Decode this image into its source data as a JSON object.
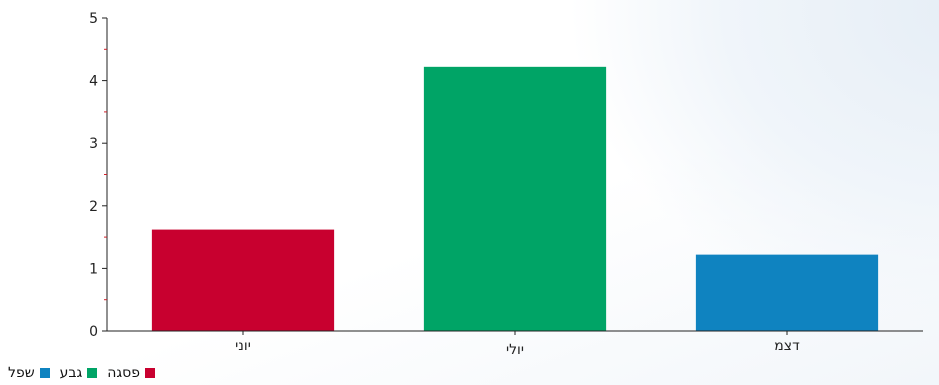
{
  "chart_data": {
    "type": "bar",
    "categories": [
      "יוני",
      "יולי",
      "דצמ"
    ],
    "values": [
      1.62,
      4.22,
      1.22
    ],
    "colors": [
      "#c8002f",
      "#00a466",
      "#0f83c0"
    ],
    "ylim": [
      0,
      5
    ],
    "yticks": [
      0,
      1,
      2,
      3,
      4,
      5
    ],
    "title": "",
    "xlabel": "",
    "ylabel": "",
    "legend_position": "bottom-left"
  },
  "legend": [
    {
      "label": "פסגה",
      "color": "#c8002f"
    },
    {
      "label": "גבע",
      "color": "#00a466"
    },
    {
      "label": "שפל",
      "color": "#0f83c0"
    }
  ]
}
